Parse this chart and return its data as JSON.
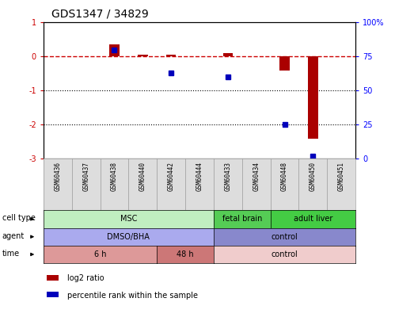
{
  "title": "GDS1347 / 34829",
  "samples": [
    "GSM60436",
    "GSM60437",
    "GSM60438",
    "GSM60440",
    "GSM60442",
    "GSM60444",
    "GSM60433",
    "GSM60434",
    "GSM60448",
    "GSM60450",
    "GSM60451"
  ],
  "log2_ratio": [
    0.0,
    0.0,
    0.35,
    0.05,
    0.05,
    0.0,
    0.1,
    0.0,
    -0.4,
    -2.4,
    0.0
  ],
  "percentile_rank": [
    null,
    null,
    80,
    null,
    63,
    null,
    60,
    null,
    25,
    2,
    null
  ],
  "ylim_left": [
    -3,
    1
  ],
  "ylim_right": [
    0,
    100
  ],
  "yticks_left": [
    -3,
    -2,
    -1,
    0,
    1
  ],
  "yticks_right": [
    0,
    25,
    50,
    75,
    100
  ],
  "ytick_labels_right": [
    "0",
    "25",
    "50",
    "75",
    "100%"
  ],
  "hline_y": 0,
  "dotted_lines": [
    -1,
    -2
  ],
  "bar_color": "#aa0000",
  "point_color": "#0000bb",
  "hline_color": "#cc0000",
  "cell_type_groups": [
    {
      "label": "MSC",
      "start": 0,
      "end": 6,
      "color": "#c0eec0"
    },
    {
      "label": "fetal brain",
      "start": 6,
      "end": 8,
      "color": "#55cc55"
    },
    {
      "label": "adult liver",
      "start": 8,
      "end": 11,
      "color": "#44cc44"
    }
  ],
  "agent_groups": [
    {
      "label": "DMSO/BHA",
      "start": 0,
      "end": 6,
      "color": "#aaaaee"
    },
    {
      "label": "control",
      "start": 6,
      "end": 11,
      "color": "#8888cc"
    }
  ],
  "time_groups": [
    {
      "label": "6 h",
      "start": 0,
      "end": 4,
      "color": "#dd9999"
    },
    {
      "label": "48 h",
      "start": 4,
      "end": 6,
      "color": "#cc7777"
    },
    {
      "label": "control",
      "start": 6,
      "end": 11,
      "color": "#f0cccc"
    }
  ],
  "row_labels": [
    "cell type",
    "agent",
    "time"
  ],
  "legend_red": "log2 ratio",
  "legend_blue": "percentile rank within the sample",
  "bg_color": "#ffffff"
}
